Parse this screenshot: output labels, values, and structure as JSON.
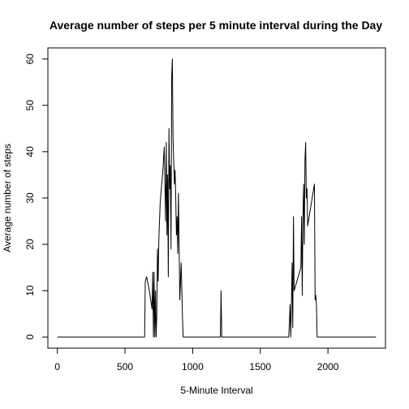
{
  "chart_data": {
    "type": "line",
    "title": "Average number of steps per 5 minute interval during the Day",
    "xlabel": "5-Minute Interval",
    "ylabel": "Average number of steps",
    "xlim": [
      -70,
      2425
    ],
    "ylim": [
      -2.4,
      62.4
    ],
    "x_ticks": [
      0,
      500,
      1000,
      1500,
      2000
    ],
    "y_ticks": [
      0,
      10,
      20,
      30,
      40,
      50,
      60
    ],
    "grid": false,
    "legend": "none",
    "line_color": "#000000",
    "series": [
      {
        "x": [
          0,
          645,
          650,
          660,
          680,
          690,
          700,
          705,
          710,
          715,
          720,
          725,
          730,
          735,
          740,
          745,
          750,
          760,
          780,
          790,
          800,
          805,
          810,
          815,
          820,
          825,
          830,
          835,
          840,
          845,
          850,
          855,
          860,
          865,
          870,
          875,
          880,
          885,
          890,
          895,
          900,
          905,
          910,
          915,
          920,
          925,
          930,
          1205,
          1210,
          1215,
          1220,
          1710,
          1715,
          1720,
          1725,
          1730,
          1735,
          1740,
          1745,
          1750,
          1800,
          1805,
          1810,
          1815,
          1820,
          1825,
          1830,
          1835,
          1840,
          1845,
          1850,
          1900,
          1905,
          1910,
          1915,
          1920,
          2355
        ],
        "y": [
          0,
          0,
          12,
          13,
          10,
          8,
          6,
          14,
          0,
          14,
          0,
          10,
          0,
          5,
          19,
          12,
          21,
          29,
          36,
          41,
          25,
          42,
          22,
          35,
          13,
          45,
          32,
          37,
          19,
          56,
          60,
          43,
          38,
          33,
          36,
          30,
          22,
          26,
          18,
          31,
          20,
          8,
          12,
          16,
          10,
          4,
          0,
          0,
          10,
          0,
          0,
          0,
          3,
          7,
          0,
          7,
          16,
          2,
          26,
          10,
          15,
          26,
          9,
          26,
          33,
          20,
          38,
          42,
          30,
          32,
          24,
          33,
          8,
          9,
          7,
          0,
          0
        ]
      }
    ]
  }
}
